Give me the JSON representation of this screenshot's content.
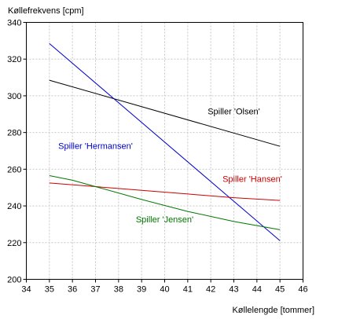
{
  "chart_data": {
    "type": "line",
    "ylabel": "Køllefrekvens [cpm]",
    "xlabel": "Køllelengde [tommer]",
    "xlim": [
      34,
      46
    ],
    "ylim": [
      200,
      340
    ],
    "x_ticks": [
      34,
      35,
      36,
      37,
      38,
      39,
      40,
      41,
      42,
      43,
      44,
      45,
      46
    ],
    "y_ticks": [
      200,
      220,
      240,
      260,
      280,
      300,
      320,
      340
    ],
    "grid": true,
    "series": [
      {
        "name": "Spiller 'Olsen'",
        "color": "#000000",
        "x": [
          35,
          45
        ],
        "y": [
          308.5,
          272.5
        ],
        "label_at": [
          43.0,
          290.0
        ]
      },
      {
        "name": "Spiller 'Hermansen'",
        "color": "#0000cc",
        "x": [
          35,
          45
        ],
        "y": [
          328.5,
          221.0
        ],
        "label_at": [
          37.0,
          271.0
        ]
      },
      {
        "name": "Spiller 'Hansen'",
        "color": "#cc0000",
        "x": [
          35,
          37,
          39,
          41,
          43,
          45
        ],
        "y": [
          252.5,
          250.5,
          248.5,
          246.5,
          244.5,
          243.0
        ],
        "label_at": [
          43.8,
          253.0
        ]
      },
      {
        "name": "Spiller 'Jensen'",
        "color": "#007700",
        "x": [
          35,
          36,
          37,
          39,
          41,
          43,
          45
        ],
        "y": [
          256.5,
          254.0,
          250.5,
          243.5,
          237.0,
          231.5,
          227.0
        ],
        "label_at": [
          40.0,
          231.0
        ]
      }
    ]
  }
}
